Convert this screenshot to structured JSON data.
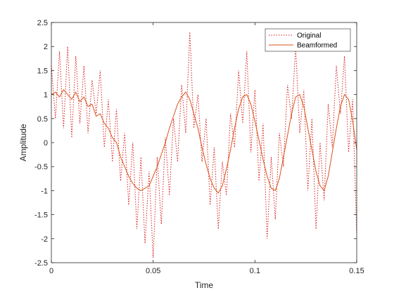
{
  "chart_data": {
    "type": "line",
    "title": "",
    "xlabel": "Time",
    "ylabel": "Amplitude",
    "xlim": [
      0,
      0.15
    ],
    "ylim": [
      -2.5,
      2.5
    ],
    "xticks": [
      0,
      0.05,
      0.1,
      0.15
    ],
    "xtick_labels": [
      "0",
      "0.05",
      "0.1",
      "0.15"
    ],
    "yticks": [
      -2.5,
      -2,
      -1.5,
      -1,
      -0.5,
      0,
      0.5,
      1,
      1.5,
      2,
      2.5
    ],
    "ytick_labels": [
      "-2.5",
      "-2",
      "-1.5",
      "-1",
      "-0.5",
      "0",
      "0.5",
      "1",
      "1.5",
      "2",
      "2.5"
    ],
    "grid": false,
    "legend_position": "top-right",
    "series": [
      {
        "name": "Original",
        "color": "#d62020",
        "style": "dotted",
        "x": [
          0,
          0.002,
          0.004,
          0.006,
          0.008,
          0.01,
          0.012,
          0.014,
          0.016,
          0.018,
          0.02,
          0.022,
          0.024,
          0.026,
          0.028,
          0.03,
          0.032,
          0.034,
          0.036,
          0.038,
          0.04,
          0.042,
          0.044,
          0.046,
          0.048,
          0.05,
          0.052,
          0.054,
          0.056,
          0.058,
          0.06,
          0.062,
          0.064,
          0.066,
          0.068,
          0.07,
          0.072,
          0.074,
          0.076,
          0.078,
          0.08,
          0.082,
          0.084,
          0.086,
          0.088,
          0.09,
          0.092,
          0.094,
          0.096,
          0.098,
          0.1,
          0.102,
          0.104,
          0.106,
          0.108,
          0.11,
          0.112,
          0.114,
          0.116,
          0.118,
          0.12,
          0.122,
          0.124,
          0.126,
          0.128,
          0.13,
          0.132,
          0.134,
          0.136,
          0.138,
          0.14,
          0.142,
          0.144,
          0.146,
          0.148,
          0.15
        ],
        "y": [
          1.6,
          0.5,
          1.9,
          0.3,
          2.0,
          0.1,
          1.8,
          0.4,
          1.6,
          0.2,
          1.3,
          0.6,
          1.5,
          -0.1,
          0.9,
          -0.4,
          0.7,
          -0.8,
          0.2,
          -1.3,
          0.0,
          -1.8,
          -0.3,
          -2.1,
          -0.6,
          -2.4,
          -0.3,
          -1.7,
          0.1,
          -1.1,
          0.5,
          -0.4,
          1.2,
          0.2,
          2.3,
          0.3,
          1.0,
          -0.4,
          0.5,
          -1.3,
          -0.1,
          -1.8,
          -0.4,
          -1.1,
          0.6,
          -0.1,
          1.5,
          0.4,
          1.9,
          -0.2,
          1.1,
          -0.8,
          0.4,
          -2.0,
          -0.3,
          -1.6,
          0.2,
          -0.5,
          1.2,
          0.5,
          2.0,
          0.2,
          1.1,
          -1.0,
          0.5,
          -1.8,
          0.0,
          -1.2,
          0.8,
          -0.1,
          1.6,
          0.6,
          1.8,
          -0.2,
          0.9,
          -1.9
        ],
        "note_visible": "dotted red line"
      },
      {
        "name": "Beamformed",
        "color": "#d95319",
        "style": "solid",
        "x": [
          0,
          0.002,
          0.004,
          0.006,
          0.008,
          0.01,
          0.012,
          0.014,
          0.016,
          0.018,
          0.02,
          0.022,
          0.024,
          0.026,
          0.028,
          0.03,
          0.032,
          0.034,
          0.036,
          0.038,
          0.04,
          0.042,
          0.044,
          0.046,
          0.048,
          0.05,
          0.052,
          0.054,
          0.056,
          0.058,
          0.06,
          0.062,
          0.064,
          0.066,
          0.068,
          0.07,
          0.072,
          0.074,
          0.076,
          0.078,
          0.08,
          0.082,
          0.084,
          0.086,
          0.088,
          0.09,
          0.092,
          0.094,
          0.096,
          0.098,
          0.1,
          0.102,
          0.104,
          0.106,
          0.108,
          0.11,
          0.112,
          0.114,
          0.116,
          0.118,
          0.12,
          0.122,
          0.124,
          0.126,
          0.128,
          0.13,
          0.132,
          0.134,
          0.136,
          0.138,
          0.14,
          0.142,
          0.144,
          0.146,
          0.148,
          0.15
        ],
        "y": [
          1.0,
          1.05,
          0.95,
          1.1,
          1.0,
          0.9,
          1.05,
          0.85,
          0.95,
          0.75,
          0.8,
          0.55,
          0.6,
          0.4,
          0.3,
          0.1,
          0.0,
          -0.3,
          -0.5,
          -0.7,
          -0.85,
          -0.95,
          -1.0,
          -0.95,
          -0.9,
          -0.7,
          -0.5,
          -0.25,
          0.0,
          0.3,
          0.55,
          0.8,
          0.95,
          1.05,
          0.9,
          0.6,
          0.3,
          -0.1,
          -0.45,
          -0.75,
          -0.95,
          -1.05,
          -0.9,
          -0.55,
          -0.15,
          0.3,
          0.7,
          0.95,
          1.0,
          0.8,
          0.45,
          0.05,
          -0.35,
          -0.7,
          -0.95,
          -1.0,
          -0.75,
          -0.3,
          0.15,
          0.6,
          0.95,
          1.0,
          0.75,
          0.3,
          -0.15,
          -0.6,
          -0.9,
          -1.0,
          -0.7,
          -0.2,
          0.3,
          0.75,
          1.0,
          0.9,
          0.45,
          -0.15
        ]
      }
    ]
  }
}
